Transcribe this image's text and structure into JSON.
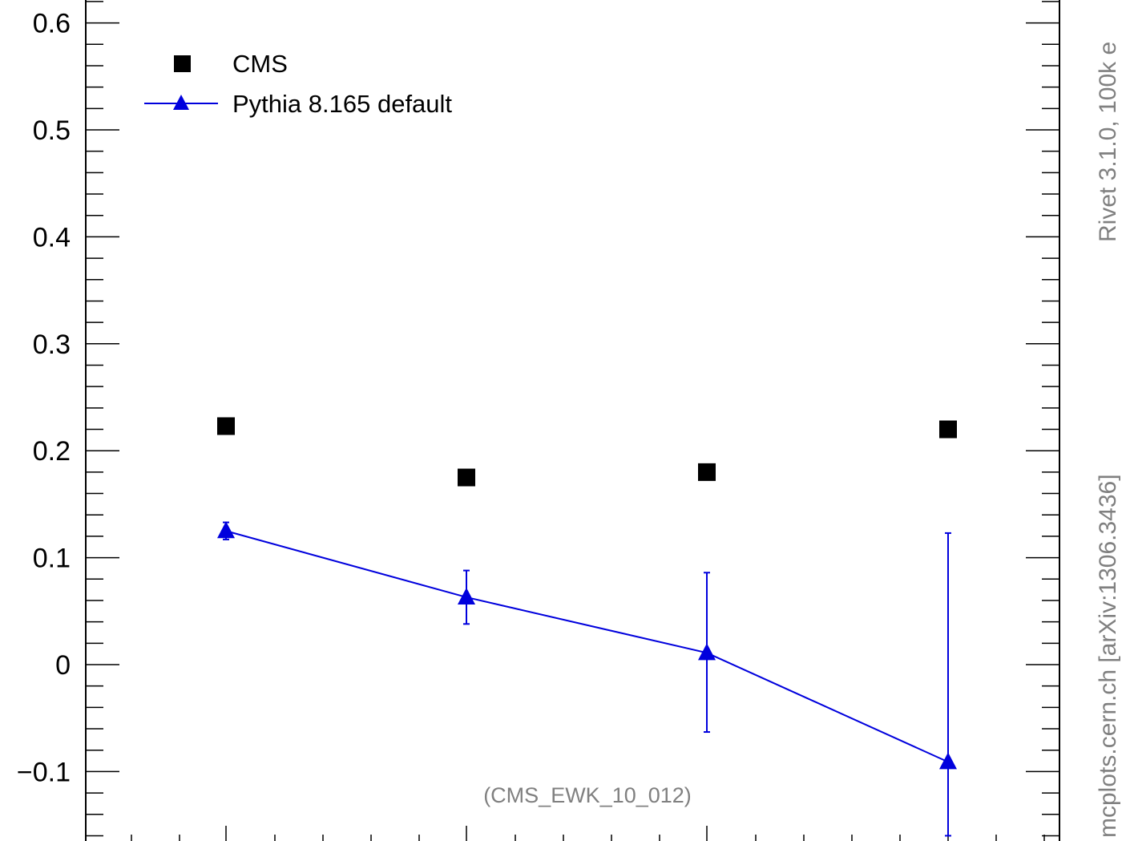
{
  "chart_data": {
    "type": "scatter",
    "title": "",
    "xlabel": "",
    "ylabel": "",
    "x": [
      1,
      2,
      3,
      4
    ],
    "ylim": [
      -0.16,
      0.62
    ],
    "yticks": [
      {
        "value": 0.6,
        "label": "0.6"
      },
      {
        "value": 0.5,
        "label": "0.5"
      },
      {
        "value": 0.4,
        "label": "0.4"
      },
      {
        "value": 0.3,
        "label": "0.3"
      },
      {
        "value": 0.2,
        "label": "0.2"
      },
      {
        "value": 0.1,
        "label": "0.1"
      },
      {
        "value": 0.0,
        "label": "0"
      },
      {
        "value": -0.1,
        "label": "−0.1"
      }
    ],
    "grid": false,
    "legend_position": "top-left",
    "series": [
      {
        "name": "CMS",
        "marker": "square",
        "color": "#000000",
        "line": false,
        "values": [
          0.223,
          0.175,
          0.18,
          0.22
        ]
      },
      {
        "name": "Pythia 8.165 default",
        "marker": "triangle",
        "color": "#0000dd",
        "line": true,
        "values": [
          0.125,
          0.063,
          0.011,
          -0.091
        ],
        "err_low": [
          0.117,
          0.038,
          -0.063,
          -0.16
        ],
        "err_high": [
          0.133,
          0.088,
          0.086,
          0.123
        ]
      }
    ],
    "annotation": "(CMS_EWK_10_012)",
    "side_text_top": "Rivet 3.1.0,  100k e",
    "side_text_bottom": "mcplots.cern.ch [arXiv:1306.3436]"
  }
}
